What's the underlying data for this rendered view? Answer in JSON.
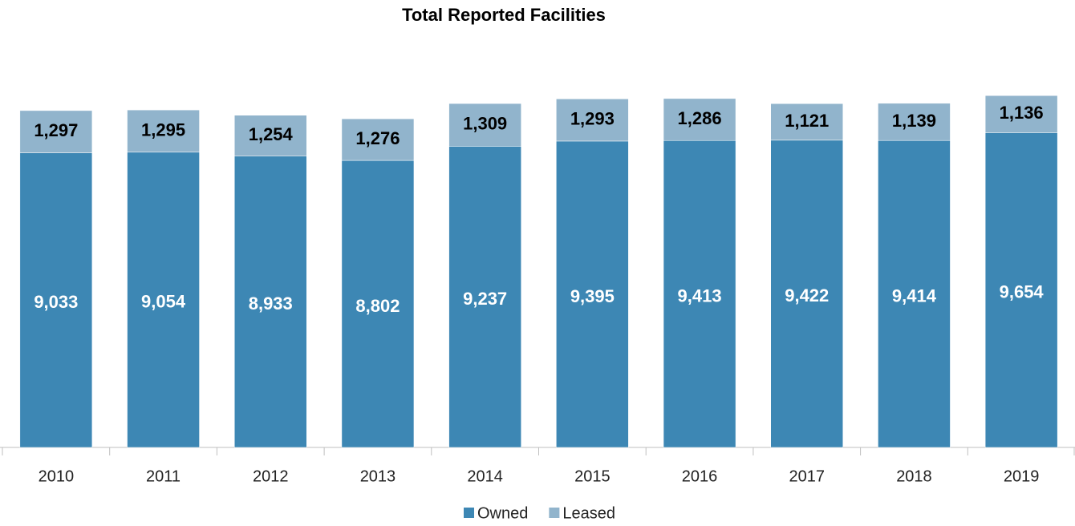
{
  "chart_data": {
    "type": "stacked_bar",
    "title": "Total Reported Facilities",
    "categories": [
      "2010",
      "2011",
      "2012",
      "2013",
      "2014",
      "2015",
      "2016",
      "2017",
      "2018",
      "2019"
    ],
    "series": [
      {
        "name": "Owned",
        "color": "#3d87b4",
        "values": [
          9033,
          9054,
          8933,
          8802,
          9237,
          9395,
          9413,
          9422,
          9414,
          9654
        ],
        "value_labels": [
          "9,033",
          "9,054",
          "8,933",
          "8,802",
          "9,237",
          "9,395",
          "9,413",
          "9,422",
          "9,414",
          "9,654"
        ]
      },
      {
        "name": "Leased",
        "color": "#91b4cc",
        "values": [
          1297,
          1295,
          1254,
          1276,
          1309,
          1293,
          1286,
          1121,
          1139,
          1136
        ],
        "value_labels": [
          "1,297",
          "1,295",
          "1,254",
          "1,276",
          "1,309",
          "1,293",
          "1,286",
          "1,121",
          "1,139",
          "1,136"
        ]
      }
    ],
    "ylim": [
      0,
      12000
    ],
    "legend": "bottom"
  }
}
